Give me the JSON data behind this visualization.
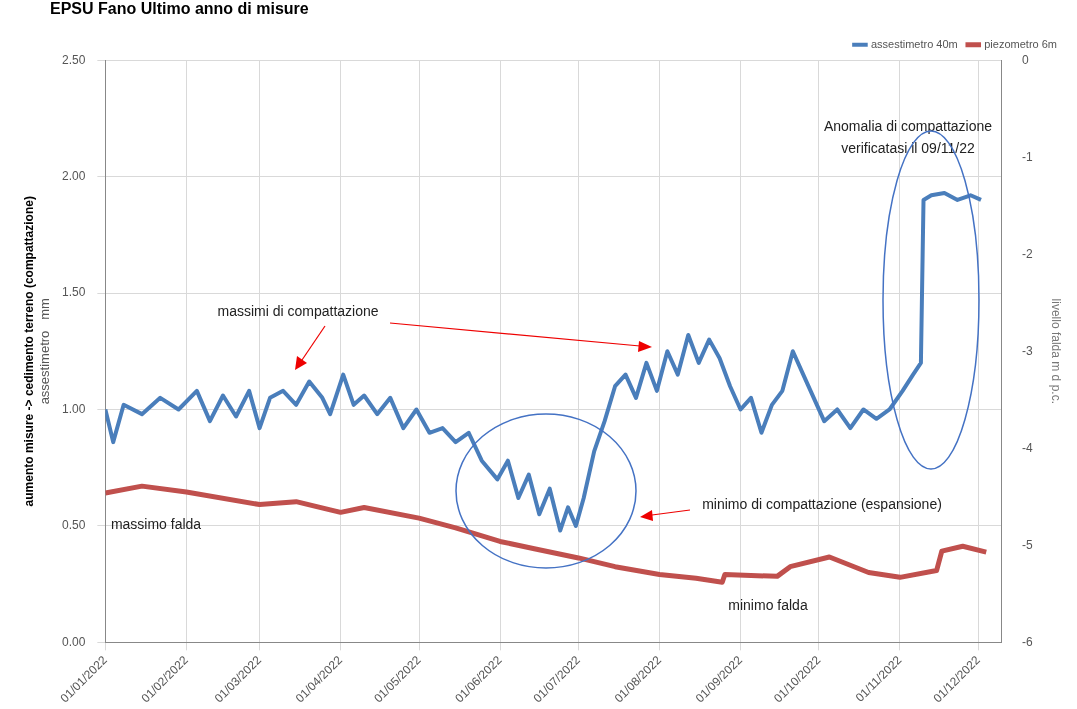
{
  "chart_data": {
    "type": "line",
    "title": "EPSU Fano Ultimo anno di misure",
    "ylabel": "aumento misure -> cedimento terreno (compattazione)\nassestimetro   mm",
    "y2label": "livello falda m d p.c.",
    "xlim": [
      "2022-01-01",
      "2022-12-10"
    ],
    "xticks": [
      {
        "value": "2022-01-01",
        "label": "01/01/2022"
      },
      {
        "value": "2022-02-01",
        "label": "01/02/2022"
      },
      {
        "value": "2022-03-01",
        "label": "01/03/2022"
      },
      {
        "value": "2022-04-01",
        "label": "01/04/2022"
      },
      {
        "value": "2022-05-01",
        "label": "01/05/2022"
      },
      {
        "value": "2022-06-01",
        "label": "01/06/2022"
      },
      {
        "value": "2022-07-01",
        "label": "01/07/2022"
      },
      {
        "value": "2022-08-01",
        "label": "01/08/2022"
      },
      {
        "value": "2022-09-01",
        "label": "01/09/2022"
      },
      {
        "value": "2022-10-01",
        "label": "01/10/2022"
      },
      {
        "value": "2022-11-01",
        "label": "01/11/2022"
      },
      {
        "value": "2022-12-01",
        "label": "01/12/2022"
      }
    ],
    "ylim": [
      0,
      2.5
    ],
    "yticks": [
      {
        "value": 0,
        "label": "0.00"
      },
      {
        "value": 0.5,
        "label": "0.50"
      },
      {
        "value": 1,
        "label": "1.00"
      },
      {
        "value": 1.5,
        "label": "1.50"
      },
      {
        "value": 2,
        "label": "2.00"
      },
      {
        "value": 2.5,
        "label": "2.50"
      }
    ],
    "y2lim": [
      -6,
      0
    ],
    "y2ticks": [
      -6,
      -5,
      -4,
      -3,
      -2,
      -1,
      0
    ],
    "grid": true,
    "legend": "top right",
    "marker": "none",
    "line_style": "solid",
    "series": [
      {
        "name": "assestimetro 40m",
        "color": "#4a7ebb",
        "x": [
          "2022-01-01",
          "2022-01-04",
          "2022-01-08",
          "2022-01-15",
          "2022-01-22",
          "2022-01-29",
          "2022-02-05",
          "2022-02-10",
          "2022-02-15",
          "2022-02-20",
          "2022-02-25",
          "2022-03-01",
          "2022-03-05",
          "2022-03-10",
          "2022-03-15",
          "2022-03-20",
          "2022-03-25",
          "2022-03-28",
          "2022-04-02",
          "2022-04-06",
          "2022-04-10",
          "2022-04-15",
          "2022-04-20",
          "2022-04-25",
          "2022-04-30",
          "2022-05-05",
          "2022-05-10",
          "2022-05-15",
          "2022-05-20",
          "2022-05-25",
          "2022-05-31",
          "2022-06-04",
          "2022-06-08",
          "2022-06-12",
          "2022-06-16",
          "2022-06-20",
          "2022-06-24",
          "2022-06-27",
          "2022-06-30",
          "2022-07-03",
          "2022-07-07",
          "2022-07-11",
          "2022-07-15",
          "2022-07-19",
          "2022-07-23",
          "2022-07-27",
          "2022-07-31",
          "2022-08-04",
          "2022-08-08",
          "2022-08-12",
          "2022-08-16",
          "2022-08-20",
          "2022-08-24",
          "2022-08-28",
          "2022-09-01",
          "2022-09-05",
          "2022-09-09",
          "2022-09-13",
          "2022-09-17",
          "2022-09-21",
          "2022-09-25",
          "2022-09-29",
          "2022-10-03",
          "2022-10-08",
          "2022-10-13",
          "2022-10-18",
          "2022-10-23",
          "2022-10-28",
          "2022-11-02",
          "2022-11-06",
          "2022-11-09",
          "2022-11-10",
          "2022-11-13",
          "2022-11-18",
          "2022-11-23",
          "2022-11-28",
          "2022-12-02"
        ],
        "values": [
          1.0,
          0.86,
          1.02,
          0.98,
          1.05,
          1.0,
          1.08,
          0.95,
          1.06,
          0.97,
          1.08,
          0.92,
          1.05,
          1.08,
          1.02,
          1.12,
          1.05,
          0.98,
          1.15,
          1.02,
          1.06,
          0.98,
          1.05,
          0.92,
          1.0,
          0.9,
          0.92,
          0.86,
          0.9,
          0.78,
          0.7,
          0.78,
          0.62,
          0.72,
          0.55,
          0.66,
          0.48,
          0.58,
          0.5,
          0.62,
          0.82,
          0.95,
          1.1,
          1.15,
          1.05,
          1.2,
          1.08,
          1.25,
          1.15,
          1.32,
          1.2,
          1.3,
          1.22,
          1.1,
          1.0,
          1.05,
          0.9,
          1.02,
          1.08,
          1.25,
          1.15,
          1.05,
          0.95,
          1.0,
          0.92,
          1.0,
          0.96,
          1.0,
          1.08,
          1.15,
          1.2,
          1.9,
          1.92,
          1.93,
          1.9,
          1.92,
          1.9
        ]
      },
      {
        "name": "piezometro 6m",
        "color": "#c0504d",
        "axis": "y2",
        "x": [
          "2022-01-01",
          "2022-01-15",
          "2022-02-01",
          "2022-03-01",
          "2022-03-15",
          "2022-04-01",
          "2022-04-10",
          "2022-05-01",
          "2022-05-15",
          "2022-06-01",
          "2022-06-15",
          "2022-07-01",
          "2022-07-15",
          "2022-08-01",
          "2022-08-15",
          "2022-08-25",
          "2022-08-26",
          "2022-09-15",
          "2022-09-20",
          "2022-10-05",
          "2022-10-20",
          "2022-11-01",
          "2022-11-15",
          "2022-11-17",
          "2022-11-25",
          "2022-12-04"
        ],
        "values": [
          -4.46,
          -4.39,
          -4.45,
          -4.58,
          -4.55,
          -4.66,
          -4.61,
          -4.72,
          -4.82,
          -4.96,
          -5.04,
          -5.13,
          -5.22,
          -5.3,
          -5.34,
          -5.38,
          -5.3,
          -5.32,
          -5.22,
          -5.12,
          -5.28,
          -5.33,
          -5.26,
          -5.06,
          -5.01,
          -5.07
        ]
      }
    ],
    "annotations": [
      "massimi di compattazione",
      "minimo di compattazione (espansione)",
      "massimo falda",
      "minimo falda",
      "Anomalia di compattazione\nverificatasi il 09/11/22"
    ]
  }
}
